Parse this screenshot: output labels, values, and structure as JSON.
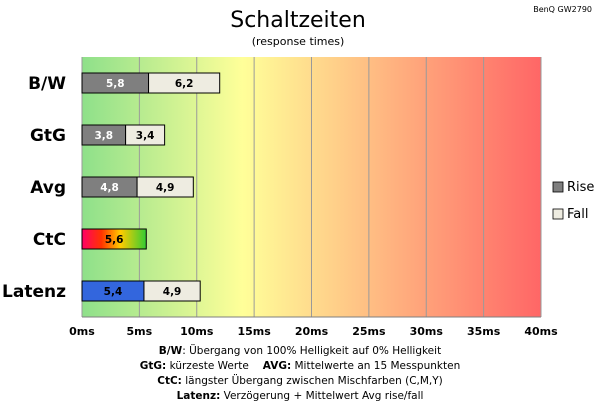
{
  "chart_data": {
    "type": "bar",
    "orientation": "horizontal",
    "stacked": true,
    "title": "Schaltzeiten",
    "subtitle": "(response times)",
    "model_label": "BenQ GW2790",
    "categories": [
      "B/W",
      "GtG",
      "Avg",
      "CtC",
      "Latenz"
    ],
    "series": [
      {
        "name": "Rise",
        "values": [
          5.8,
          3.8,
          4.8,
          5.6,
          5.4
        ],
        "labels": [
          "5,8",
          "3,8",
          "4,8",
          "5,6",
          "5,4"
        ]
      },
      {
        "name": "Fall",
        "values": [
          6.2,
          3.4,
          4.9,
          null,
          4.9
        ],
        "labels": [
          "6,2",
          "3,4",
          "4,9",
          "",
          "4,9"
        ]
      }
    ],
    "xlim": [
      0,
      40
    ],
    "xticks": [
      0,
      5,
      10,
      15,
      20,
      25,
      30,
      35,
      40
    ],
    "xtick_labels": [
      "0ms",
      "5ms",
      "10ms",
      "15ms",
      "20ms",
      "25ms",
      "30ms",
      "35ms",
      "40ms"
    ],
    "grid": true,
    "legend": "right",
    "colors": {
      "rise": "#7f7f7f",
      "fall": "#eeece1",
      "ctc_gradient": [
        "#ff0066",
        "#ff3300",
        "#ffcc00",
        "#33cc33"
      ],
      "latenz": "#3366dd",
      "background_gradient": [
        "#8ee08a",
        "#ffff99",
        "#ff6666"
      ]
    }
  },
  "footnotes": [
    {
      "bold": "B/W",
      "text": ":  Übergang von 100% Helligkeit auf 0% Helligkeit"
    },
    {
      "bold": "GtG:",
      "text": " kürzeste  Werte",
      "bold2": "AVG:",
      "text2": " Mittelwerte  an 15 Messpunkten"
    },
    {
      "bold": "CtC:",
      "text": " längster Übergang  zwischen Mischfarben (C,M,Y)"
    },
    {
      "bold": "Latenz:",
      "text": " Verzögerung  + Mittelwert Avg rise/fall"
    }
  ]
}
